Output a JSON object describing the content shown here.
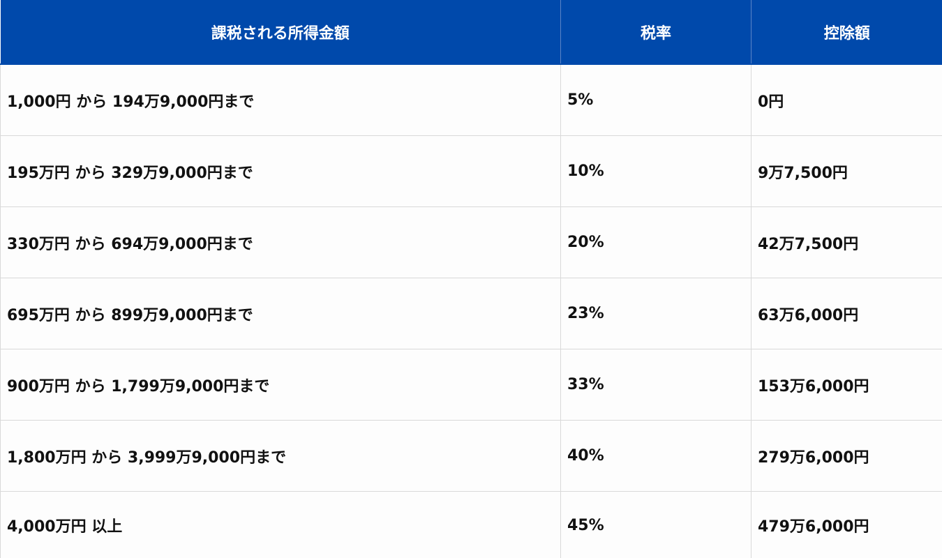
{
  "table": {
    "headers": {
      "income": "課税される所得金額",
      "rate": "税率",
      "deduction": "控除額"
    },
    "rows": [
      {
        "income": "1,000円 から 194万9,000円まで",
        "rate": "5%",
        "deduction": "0円"
      },
      {
        "income": "195万円 から 329万9,000円まで",
        "rate": "10%",
        "deduction": "9万7,500円"
      },
      {
        "income": "330万円 から 694万9,000円まで",
        "rate": "20%",
        "deduction": "42万7,500円"
      },
      {
        "income": "695万円 から 899万9,000円まで",
        "rate": "23%",
        "deduction": "63万6,000円"
      },
      {
        "income": "900万円 から 1,799万9,000円まで",
        "rate": "33%",
        "deduction": "153万6,000円"
      },
      {
        "income": "1,800万円 から 3,999万9,000円まで",
        "rate": "40%",
        "deduction": "279万6,000円"
      },
      {
        "income": "4,000万円 以上",
        "rate": "45%",
        "deduction": "479万6,000円"
      }
    ]
  },
  "colors": {
    "header_background": "#0049ab",
    "header_text": "#ffffff",
    "cell_text": "#111111",
    "border": "#d9d9d9"
  }
}
